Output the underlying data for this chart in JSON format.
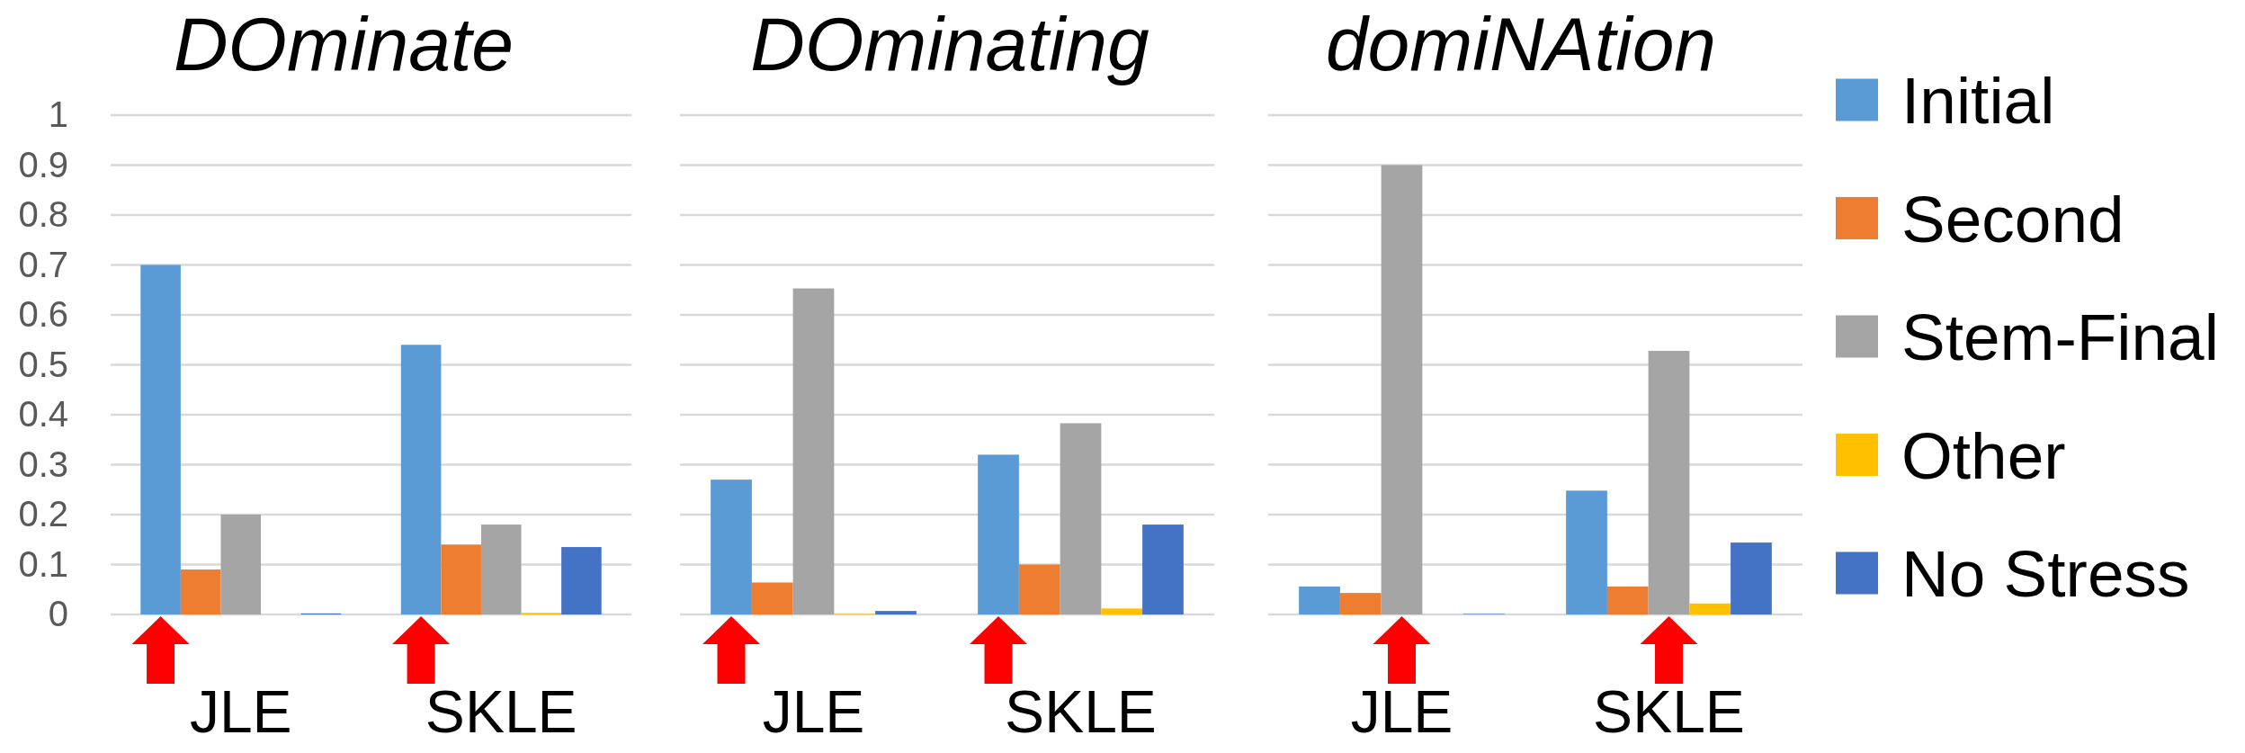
{
  "chart_data": [
    {
      "type": "bar",
      "title": "DOminate",
      "categories": [
        "JLE",
        "SKLE"
      ],
      "series": [
        {
          "color": "#5b9bd5",
          "values": [
            0.7,
            0.54
          ]
        },
        {
          "color": "#ed7d31",
          "values": [
            0.09,
            0.14
          ]
        },
        {
          "color": "#a5a5a5",
          "values": [
            0.2,
            0.18
          ]
        },
        {
          "color": "#ffc000",
          "values": [
            0,
            0.003
          ]
        },
        {
          "color": "#4472c4",
          "values": [
            0.002,
            0.135
          ]
        }
      ],
      "ylim": [
        0,
        1
      ],
      "yticks": [
        0,
        0.1,
        0.2,
        0.3,
        0.4,
        0.5,
        0.6,
        0.7,
        0.8,
        0.9,
        1
      ],
      "grid": "y"
    },
    {
      "type": "bar",
      "title": "DOminating",
      "categories": [
        "JLE",
        "SKLE"
      ],
      "series": [
        {
          "color": "#5b9bd5",
          "values": [
            0.27,
            0.32
          ]
        },
        {
          "color": "#ed7d31",
          "values": [
            0.064,
            0.1
          ]
        },
        {
          "color": "#a5a5a5",
          "values": [
            0.653,
            0.383
          ]
        },
        {
          "color": "#ffc000",
          "values": [
            0.001,
            0.012
          ]
        },
        {
          "color": "#4472c4",
          "values": [
            0.007,
            0.18
          ]
        }
      ],
      "ylim": [
        0,
        1
      ],
      "yticks": [
        0,
        0.1,
        0.2,
        0.3,
        0.4,
        0.5,
        0.6,
        0.7,
        0.8,
        0.9,
        1
      ],
      "grid": "y",
      "tick_labels": "x"
    },
    {
      "type": "bar",
      "title": "domiNAtion",
      "categories": [
        "JLE",
        "SKLE"
      ],
      "series": [
        {
          "name": "Initial",
          "color": "#5b9bd5",
          "values": [
            0.056,
            0.248
          ]
        },
        {
          "name": "Second",
          "color": "#ed7d31",
          "values": [
            0.043,
            0.056
          ]
        },
        {
          "name": "Stem-Final",
          "color": "#a5a5a5",
          "values": [
            0.9,
            0.528
          ]
        },
        {
          "name": "Other",
          "color": "#ffc000",
          "values": [
            0,
            0.022
          ]
        },
        {
          "name": "No Stress",
          "color": "#4472c4",
          "values": [
            0.001,
            0.144
          ]
        }
      ],
      "ylim": [
        0,
        1
      ],
      "yticks": [
        0,
        0.1,
        0.2,
        0.3,
        0.4,
        0.5,
        0.6,
        0.7,
        0.8,
        0.9,
        1
      ],
      "grid": "y",
      "tick_labels": "x",
      "legend": "right"
    }
  ]
}
